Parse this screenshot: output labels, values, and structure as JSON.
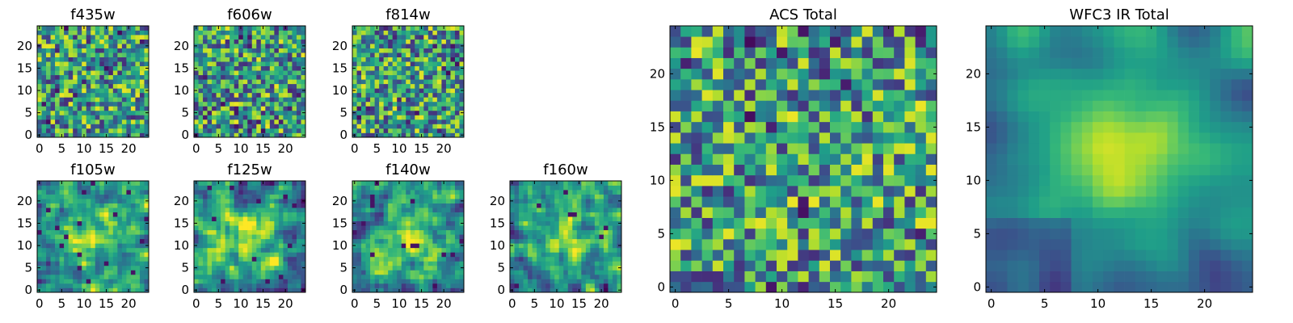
{
  "figure": {
    "type": "image-grid",
    "colormap": "viridis",
    "grid": false
  },
  "chart_data": [
    {
      "type": "heatmap",
      "title": "f435w",
      "xlim": [
        0,
        24
      ],
      "ylim": [
        0,
        24
      ],
      "xticks": [
        "0",
        "5",
        "10",
        "15",
        "20"
      ],
      "yticks": [
        "0",
        "5",
        "10",
        "15",
        "20"
      ],
      "pattern": "noise",
      "seed": 11
    },
    {
      "type": "heatmap",
      "title": "f606w",
      "xlim": [
        0,
        24
      ],
      "ylim": [
        0,
        24
      ],
      "xticks": [
        "0",
        "5",
        "10",
        "15",
        "20"
      ],
      "yticks": [
        "0",
        "5",
        "10",
        "15",
        "20"
      ],
      "pattern": "noise",
      "seed": 23
    },
    {
      "type": "heatmap",
      "title": "f814w",
      "xlim": [
        0,
        24
      ],
      "ylim": [
        0,
        24
      ],
      "xticks": [
        "0",
        "5",
        "10",
        "15",
        "20"
      ],
      "yticks": [
        "0",
        "5",
        "10",
        "15",
        "20"
      ],
      "pattern": "noise",
      "seed": 37
    },
    {
      "type": "heatmap",
      "title": "f105w",
      "xlim": [
        0,
        24
      ],
      "ylim": [
        0,
        24
      ],
      "xticks": [
        "0",
        "5",
        "10",
        "15",
        "20"
      ],
      "yticks": [
        "0",
        "5",
        "10",
        "15",
        "20"
      ],
      "pattern": "blob",
      "seed": 41
    },
    {
      "type": "heatmap",
      "title": "f125w",
      "xlim": [
        0,
        24
      ],
      "ylim": [
        0,
        24
      ],
      "xticks": [
        "0",
        "5",
        "10",
        "15",
        "20"
      ],
      "yticks": [
        "0",
        "5",
        "10",
        "15",
        "20"
      ],
      "pattern": "blob",
      "seed": 53
    },
    {
      "type": "heatmap",
      "title": "f140w",
      "xlim": [
        0,
        24
      ],
      "ylim": [
        0,
        24
      ],
      "xticks": [
        "0",
        "5",
        "10",
        "15",
        "20"
      ],
      "yticks": [
        "0",
        "5",
        "10",
        "15",
        "20"
      ],
      "pattern": "blob",
      "seed": 67
    },
    {
      "type": "heatmap",
      "title": "f160w",
      "xlim": [
        0,
        24
      ],
      "ylim": [
        0,
        24
      ],
      "xticks": [
        "0",
        "5",
        "10",
        "15",
        "20"
      ],
      "yticks": [
        "0",
        "5",
        "10",
        "15",
        "20"
      ],
      "pattern": "blob",
      "seed": 79
    },
    {
      "type": "heatmap",
      "title": "ACS Total",
      "xlim": [
        0,
        24
      ],
      "ylim": [
        0,
        24
      ],
      "xticks": [
        "0",
        "5",
        "10",
        "15",
        "20"
      ],
      "yticks": [
        "0",
        "5",
        "10",
        "15",
        "20"
      ],
      "pattern": "noise",
      "seed": 97
    },
    {
      "type": "heatmap",
      "title": "WFC3 IR Total",
      "xlim": [
        0,
        24
      ],
      "ylim": [
        0,
        24
      ],
      "xticks": [
        "0",
        "5",
        "10",
        "15",
        "20"
      ],
      "yticks": [
        "0",
        "5",
        "10",
        "15",
        "20"
      ],
      "pattern": "smooth",
      "seed": 113
    }
  ]
}
